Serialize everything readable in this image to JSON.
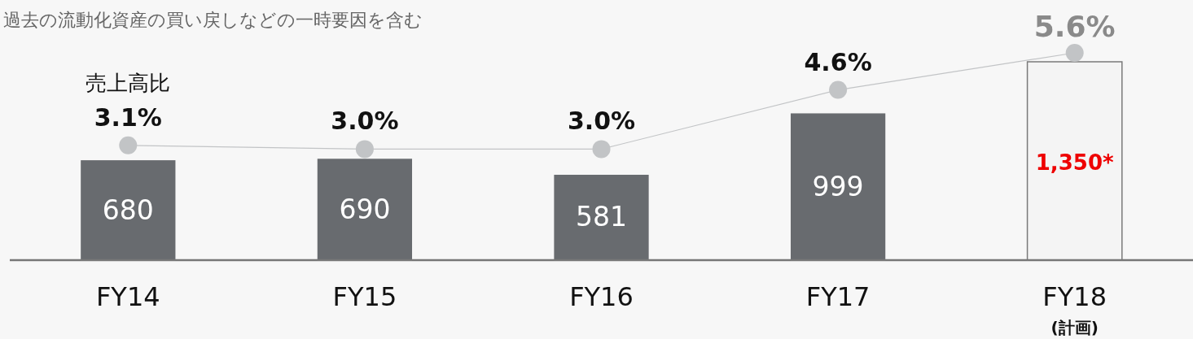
{
  "chart_data": {
    "type": "bar",
    "categories": [
      "FY14",
      "FY15",
      "FY16",
      "FY17",
      "FY18\n(計画)"
    ],
    "series": [
      {
        "colors": [
          "#686b6f",
          "#686b6f",
          "#686b6f",
          "#686b6f",
          "#f4f4f4"
        ],
        "values": [
          680,
          690,
          581,
          999,
          1350
        ],
        "value_labels": [
          "680",
          "690",
          "581",
          "999",
          "1,350*"
        ]
      },
      {
        "type": "line",
        "name": "売上高比",
        "axis": "y2",
        "color": "#c2c4c6",
        "values": [
          3.1,
          3.0,
          3.0,
          4.6,
          5.6
        ],
        "value_labels": [
          "3.1%",
          "3.0%",
          "3.0%",
          "4.6%",
          "5.6%"
        ]
      }
    ],
    "marker": "circle",
    "tick_labels": "x",
    "annotations": [
      "過去の流動化資産の買い戻しなどの一時要因を含む"
    ]
  }
}
